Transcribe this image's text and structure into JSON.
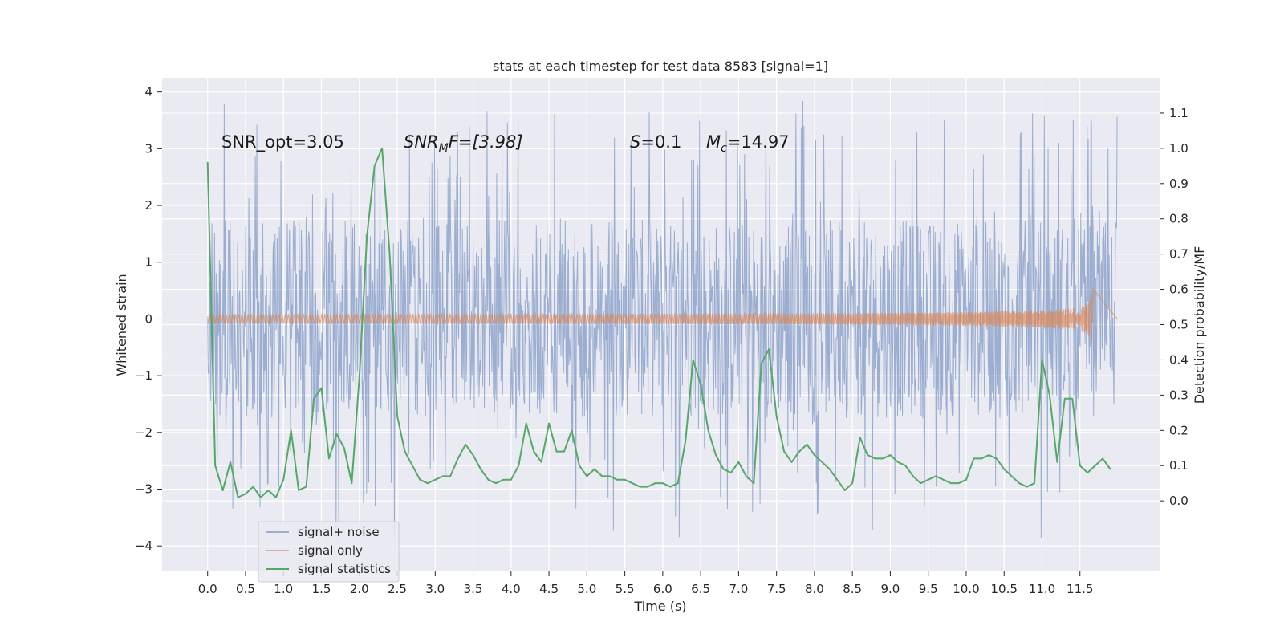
{
  "chart_data": {
    "type": "line",
    "title": "stats at each timestep for test data 8583 [signal=1]",
    "xlabel": "Time (s)",
    "ylabel": "Whitened strain",
    "y2label": "Detection probability/MF",
    "xlim": [
      -0.6,
      12.55
    ],
    "ylim": [
      -4.45,
      4.25
    ],
    "y2lim": [
      -0.2,
      1.2
    ],
    "x_ticks": [
      "0.0",
      "0.5",
      "1.0",
      "1.5",
      "2.0",
      "2.5",
      "3.0",
      "3.5",
      "4.0",
      "4.5",
      "5.0",
      "5.5",
      "6.0",
      "6.5",
      "7.0",
      "7.5",
      "8.0",
      "8.5",
      "9.0",
      "9.5",
      "10.0",
      "10.5",
      "11.0",
      "11.5"
    ],
    "y_ticks": [
      "−4",
      "−3",
      "−2",
      "−1",
      "0",
      "1",
      "2",
      "3",
      "4"
    ],
    "y2_ticks": [
      "0.0",
      "0.1",
      "0.2",
      "0.3",
      "0.4",
      "0.5",
      "0.6",
      "0.7",
      "0.8",
      "0.9",
      "1.0",
      "1.1"
    ],
    "grid": true,
    "legend_position": "lower-left",
    "colors": {
      "noise": "#4c72b0",
      "signal": "#dd8452",
      "stats": "#55a868",
      "background": "#eaeaf2",
      "grid": "#ffffff"
    },
    "annotations": {
      "snr_opt": "SNR_opt=3.05",
      "snr_mf_base": "SNR",
      "snr_mf_sub": "M",
      "snr_mf_rest": "F=[3.98]",
      "s_sym": "S",
      "s_val": "=0.1",
      "mc_sym": "M",
      "mc_sub": "c",
      "mc_val": "=14.97"
    },
    "series": [
      {
        "name": "signal+ noise",
        "axis": "left",
        "style": "noise-band",
        "x_range": [
          0.0,
          11.99
        ],
        "typical_abs": 1.75,
        "max": 3.85,
        "min": -4.05
      },
      {
        "name": "signal only",
        "axis": "left",
        "style": "chirp",
        "x_range": [
          0.0,
          11.67
        ],
        "peak_amplitude": 0.55
      },
      {
        "name": "signal statistics",
        "axis": "right",
        "x": [
          0.0,
          0.1,
          0.2,
          0.3,
          0.4,
          0.5,
          0.6,
          0.7,
          0.8,
          0.9,
          1.0,
          1.1,
          1.2,
          1.3,
          1.4,
          1.5,
          1.6,
          1.7,
          1.8,
          1.9,
          2.0,
          2.1,
          2.2,
          2.3,
          2.4,
          2.5,
          2.6,
          2.7,
          2.8,
          2.9,
          3.0,
          3.1,
          3.2,
          3.3,
          3.4,
          3.5,
          3.6,
          3.7,
          3.8,
          3.9,
          4.0,
          4.1,
          4.2,
          4.3,
          4.4,
          4.5,
          4.6,
          4.7,
          4.8,
          4.9,
          5.0,
          5.1,
          5.2,
          5.3,
          5.4,
          5.5,
          5.6,
          5.7,
          5.8,
          5.9,
          6.0,
          6.1,
          6.2,
          6.3,
          6.4,
          6.5,
          6.6,
          6.7,
          6.8,
          6.9,
          7.0,
          7.1,
          7.2,
          7.3,
          7.4,
          7.5,
          7.6,
          7.7,
          7.8,
          7.9,
          8.0,
          8.1,
          8.2,
          8.3,
          8.4,
          8.5,
          8.6,
          8.7,
          8.8,
          8.9,
          9.0,
          9.1,
          9.2,
          9.3,
          9.4,
          9.5,
          9.6,
          9.7,
          9.8,
          9.9,
          10.0,
          10.1,
          10.2,
          10.3,
          10.4,
          10.5,
          10.6,
          10.7,
          10.8,
          10.9,
          11.0,
          11.1,
          11.2,
          11.3,
          11.4,
          11.5,
          11.6,
          11.7,
          11.8,
          11.9
        ],
        "values": [
          0.96,
          0.1,
          0.03,
          0.11,
          0.01,
          0.02,
          0.04,
          0.01,
          0.03,
          0.01,
          0.06,
          0.2,
          0.03,
          0.04,
          0.29,
          0.32,
          0.12,
          0.19,
          0.15,
          0.05,
          0.35,
          0.75,
          0.95,
          1.0,
          0.7,
          0.24,
          0.14,
          0.1,
          0.06,
          0.05,
          0.06,
          0.07,
          0.07,
          0.12,
          0.16,
          0.13,
          0.09,
          0.06,
          0.05,
          0.06,
          0.06,
          0.1,
          0.22,
          0.14,
          0.11,
          0.22,
          0.14,
          0.14,
          0.2,
          0.1,
          0.07,
          0.09,
          0.07,
          0.07,
          0.06,
          0.06,
          0.05,
          0.04,
          0.04,
          0.05,
          0.05,
          0.04,
          0.05,
          0.17,
          0.4,
          0.33,
          0.2,
          0.13,
          0.09,
          0.08,
          0.11,
          0.07,
          0.05,
          0.39,
          0.43,
          0.24,
          0.14,
          0.11,
          0.14,
          0.16,
          0.13,
          0.11,
          0.09,
          0.06,
          0.03,
          0.05,
          0.18,
          0.13,
          0.12,
          0.12,
          0.13,
          0.11,
          0.1,
          0.07,
          0.05,
          0.06,
          0.07,
          0.06,
          0.05,
          0.05,
          0.06,
          0.12,
          0.12,
          0.13,
          0.12,
          0.09,
          0.07,
          0.05,
          0.04,
          0.05,
          0.4,
          0.3,
          0.11,
          0.29,
          0.29,
          0.1,
          0.08,
          0.1,
          0.12,
          0.09
        ]
      }
    ]
  }
}
